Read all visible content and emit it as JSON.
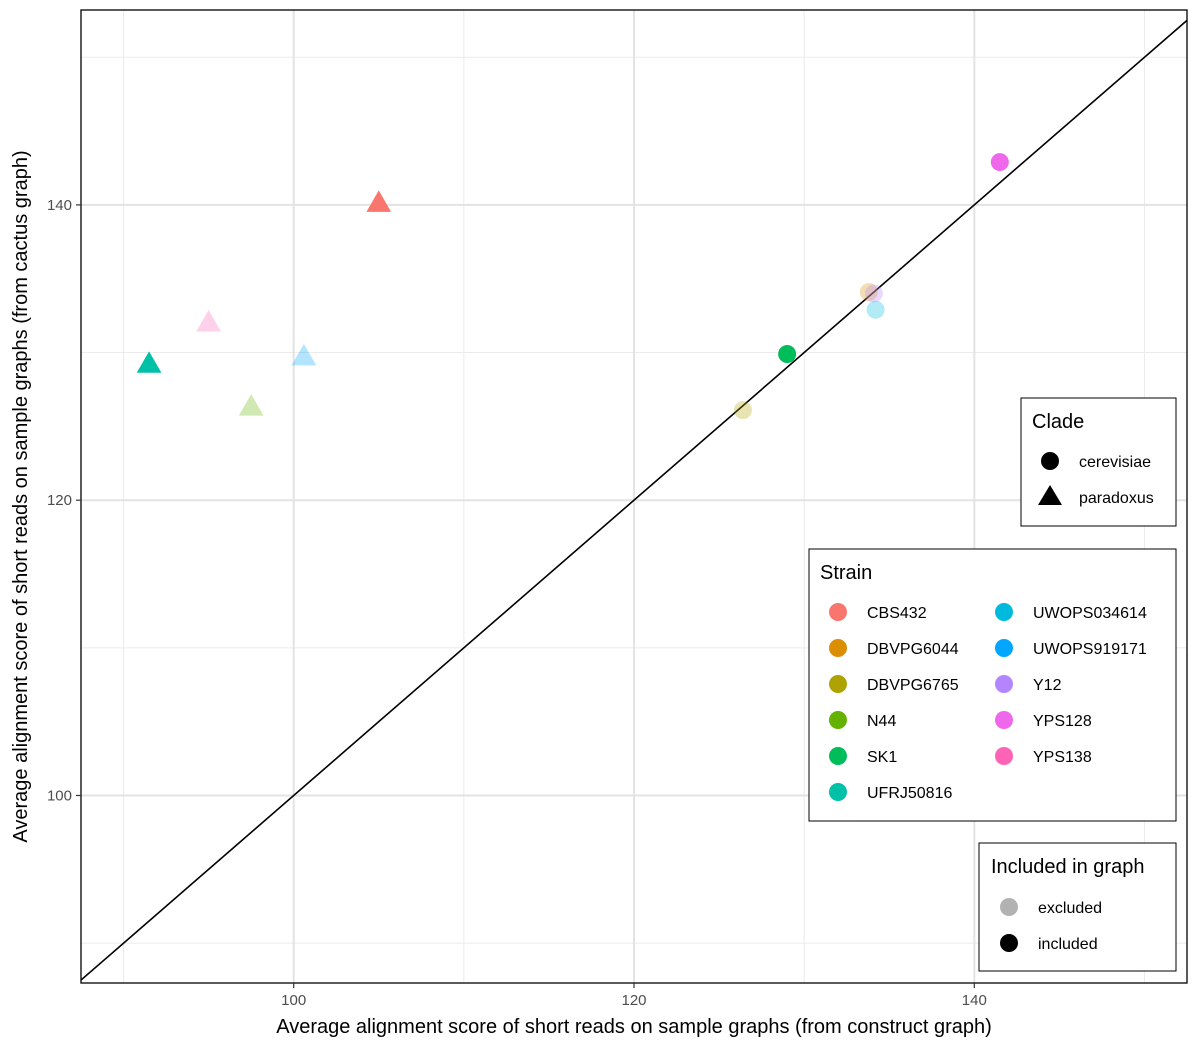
{
  "chart_data": {
    "type": "scatter",
    "title": "",
    "xlabel": "Average alignment score of short reads on sample graphs (from construct graph)",
    "ylabel": "Average alignment score of short reads on sample graphs (from cactus graph)",
    "xlim": [
      87.5,
      152.5
    ],
    "ylim": [
      87.3,
      153.2
    ],
    "x_ticks": [
      100,
      120,
      140
    ],
    "y_ticks": [
      100,
      120,
      140
    ],
    "x_minor_ticks": [
      90,
      110,
      130,
      150
    ],
    "y_minor_ticks": [
      90,
      110,
      130,
      150
    ],
    "grid": true,
    "diagonal_line": {
      "slope": 1,
      "intercept": 0
    },
    "points": [
      {
        "x": 105.0,
        "y": 140.1,
        "strain": "CBS432",
        "clade": "paradoxus",
        "included": "included"
      },
      {
        "x": 95.0,
        "y": 132.0,
        "strain": "YPS138",
        "clade": "paradoxus",
        "included": "excluded"
      },
      {
        "x": 91.5,
        "y": 129.2,
        "strain": "UFRJ50816",
        "clade": "paradoxus",
        "included": "included"
      },
      {
        "x": 97.5,
        "y": 126.3,
        "strain": "N44",
        "clade": "paradoxus",
        "included": "excluded"
      },
      {
        "x": 100.6,
        "y": 129.7,
        "strain": "UWOPS919171",
        "clade": "paradoxus",
        "included": "excluded"
      },
      {
        "x": 141.5,
        "y": 142.9,
        "strain": "YPS128",
        "clade": "cerevisiae",
        "included": "included"
      },
      {
        "x": 133.8,
        "y": 134.1,
        "strain": "DBVPG6044",
        "clade": "cerevisiae",
        "included": "excluded"
      },
      {
        "x": 134.1,
        "y": 134.0,
        "strain": "Y12",
        "clade": "cerevisiae",
        "included": "excluded"
      },
      {
        "x": 134.2,
        "y": 132.9,
        "strain": "UWOPS034614",
        "clade": "cerevisiae",
        "included": "excluded"
      },
      {
        "x": 129.0,
        "y": 129.9,
        "strain": "SK1",
        "clade": "cerevisiae",
        "included": "included"
      },
      {
        "x": 126.4,
        "y": 126.1,
        "strain": "DBVPG6765",
        "clade": "cerevisiae",
        "included": "excluded"
      }
    ],
    "legends": {
      "clade": {
        "title": "Clade",
        "placement": "right",
        "items": [
          {
            "label": "cerevisiae",
            "shape": "circle"
          },
          {
            "label": "paradoxus",
            "shape": "triangle"
          }
        ]
      },
      "strain": {
        "title": "Strain",
        "placement": "right",
        "items": [
          {
            "label": "CBS432",
            "color": "#F8766D"
          },
          {
            "label": "DBVPG6044",
            "color": "#DB8E00"
          },
          {
            "label": "DBVPG6765",
            "color": "#AEA200"
          },
          {
            "label": "N44",
            "color": "#64B200"
          },
          {
            "label": "SK1",
            "color": "#00BD5C"
          },
          {
            "label": "UFRJ50816",
            "color": "#00C1A7"
          },
          {
            "label": "UWOPS034614",
            "color": "#00BADE"
          },
          {
            "label": "UWOPS919171",
            "color": "#00A6FF"
          },
          {
            "label": "Y12",
            "color": "#B385FF"
          },
          {
            "label": "YPS128",
            "color": "#EF67EB"
          },
          {
            "label": "YPS138",
            "color": "#FF63B6"
          }
        ]
      },
      "included": {
        "title": "Included in graph",
        "placement": "bottom-right",
        "items": [
          {
            "label": "excluded",
            "alpha": 0.3
          },
          {
            "label": "included",
            "alpha": 1.0
          }
        ]
      }
    }
  }
}
